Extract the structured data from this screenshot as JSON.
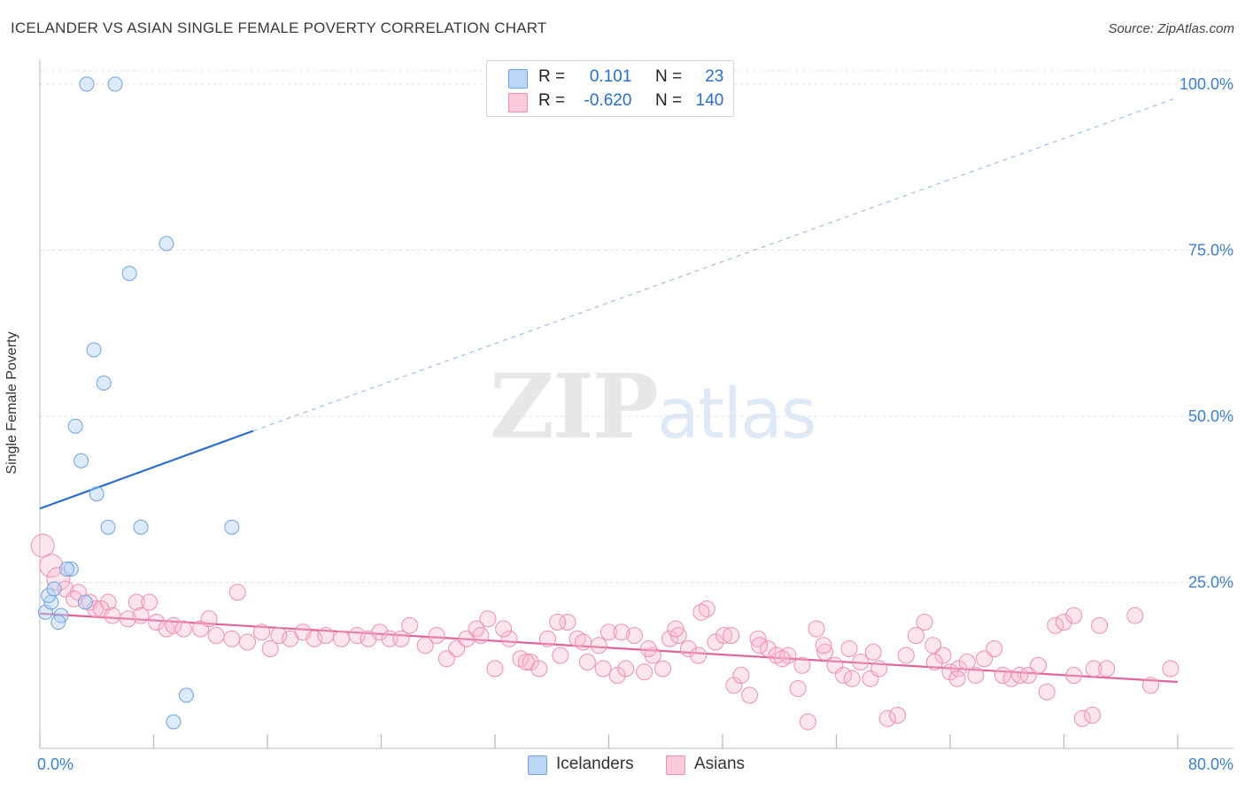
{
  "header": {
    "title": "ICELANDER VS ASIAN SINGLE FEMALE POVERTY CORRELATION CHART",
    "source": "Source: ZipAtlas.com"
  },
  "watermark": {
    "zip": "ZIP",
    "atlas": "atlas"
  },
  "legend": {
    "rows": [
      {
        "r_label": "R =",
        "r_value": "0.101",
        "n_label": "N =",
        "n_value": "23"
      },
      {
        "r_label": "R =",
        "r_value": "-0.620",
        "n_label": "N =",
        "n_value": "140"
      }
    ]
  },
  "bottom_legend": {
    "icelanders": "Icelanders",
    "asians": "Asians"
  },
  "chart_data": {
    "type": "scatter",
    "title": "ICELANDER VS ASIAN SINGLE FEMALE POVERTY CORRELATION CHART",
    "xlabel": "",
    "ylabel": "Single Female Poverty",
    "xlim": [
      0,
      80
    ],
    "ylim": [
      0,
      102
    ],
    "x_tick_labels": [
      "0.0%",
      "80.0%"
    ],
    "y_tick_labels": [
      "25.0%",
      "50.0%",
      "75.0%",
      "100.0%"
    ],
    "y_ticks": [
      25,
      50,
      75,
      100
    ],
    "colors": {
      "icelanders": "#6fa3e0",
      "asians": "#ef8fb0",
      "icelanders_line": "#2a6cc9",
      "asians_line": "#e0649a",
      "axis_label": "#3f7fd0"
    },
    "series": [
      {
        "name": "Icelanders",
        "trend": {
          "x0": 0,
          "y0": 36.1,
          "x1": 15,
          "y1": 47.8,
          "dashed_to_x": 80,
          "dashed_to_y": 98.0
        },
        "points": [
          [
            0.4,
            20.5
          ],
          [
            0.8,
            22
          ],
          [
            0.6,
            23
          ],
          [
            1.0,
            24
          ],
          [
            1.5,
            20
          ],
          [
            1.3,
            19
          ],
          [
            2.2,
            27
          ],
          [
            1.9,
            27
          ],
          [
            3.3,
            100
          ],
          [
            5.3,
            100
          ],
          [
            8.9,
            76
          ],
          [
            6.3,
            71.5
          ],
          [
            3.8,
            60
          ],
          [
            4.5,
            55
          ],
          [
            2.5,
            48.5
          ],
          [
            2.9,
            43.3
          ],
          [
            4.0,
            38.3
          ],
          [
            4.8,
            33.3
          ],
          [
            7.1,
            33.3
          ],
          [
            13.5,
            33.3
          ],
          [
            3.2,
            22
          ],
          [
            10.3,
            8
          ],
          [
            9.4,
            4
          ]
        ]
      },
      {
        "name": "Asians",
        "trend": {
          "x0": 0,
          "y0": 20.3,
          "x1": 80,
          "y1": 10.0
        },
        "points": [
          [
            0.2,
            30.5
          ],
          [
            0.8,
            27.5
          ],
          [
            1.3,
            25.5
          ],
          [
            1.8,
            24
          ],
          [
            2.7,
            23.5
          ],
          [
            2.4,
            22.5
          ],
          [
            3.5,
            22
          ],
          [
            4.8,
            22
          ],
          [
            6.8,
            22
          ],
          [
            7.7,
            22
          ],
          [
            13.9,
            23.5
          ],
          [
            3.9,
            21
          ],
          [
            4.3,
            21
          ],
          [
            5.1,
            20
          ],
          [
            6.2,
            19.5
          ],
          [
            7.1,
            20
          ],
          [
            8.2,
            19
          ],
          [
            8.9,
            18
          ],
          [
            9.4,
            18.5
          ],
          [
            10.1,
            18
          ],
          [
            11.3,
            18
          ],
          [
            11.9,
            19.5
          ],
          [
            12.4,
            17
          ],
          [
            13.5,
            16.5
          ],
          [
            14.6,
            16
          ],
          [
            15.6,
            17.5
          ],
          [
            16.2,
            15
          ],
          [
            16.8,
            17
          ],
          [
            17.6,
            16.5
          ],
          [
            18.5,
            17.5
          ],
          [
            19.3,
            16.5
          ],
          [
            20.1,
            17
          ],
          [
            21.2,
            16.5
          ],
          [
            22.3,
            17
          ],
          [
            23.1,
            16.5
          ],
          [
            23.9,
            17.5
          ],
          [
            24.6,
            16.5
          ],
          [
            25.4,
            16.5
          ],
          [
            26.0,
            18.5
          ],
          [
            27.1,
            15.5
          ],
          [
            27.9,
            17
          ],
          [
            28.6,
            13.5
          ],
          [
            29.3,
            15
          ],
          [
            30.0,
            16.5
          ],
          [
            30.7,
            18
          ],
          [
            31.5,
            19.5
          ],
          [
            32.0,
            12
          ],
          [
            33.0,
            16.5
          ],
          [
            33.8,
            13.5
          ],
          [
            34.5,
            13
          ],
          [
            35.1,
            12
          ],
          [
            35.7,
            16.5
          ],
          [
            36.6,
            14
          ],
          [
            37.1,
            19
          ],
          [
            37.8,
            16.5
          ],
          [
            38.5,
            13
          ],
          [
            39.3,
            15.5
          ],
          [
            40.0,
            17.5
          ],
          [
            40.6,
            11
          ],
          [
            41.2,
            12
          ],
          [
            41.8,
            17
          ],
          [
            42.5,
            11.5
          ],
          [
            43.1,
            14
          ],
          [
            43.8,
            12
          ],
          [
            44.3,
            16.5
          ],
          [
            44.9,
            17
          ],
          [
            45.6,
            15
          ],
          [
            46.3,
            14
          ],
          [
            46.9,
            21
          ],
          [
            47.5,
            16
          ],
          [
            48.1,
            17
          ],
          [
            48.8,
            9.5
          ],
          [
            49.3,
            11
          ],
          [
            49.9,
            8
          ],
          [
            50.5,
            16.5
          ],
          [
            51.2,
            15
          ],
          [
            51.8,
            14
          ],
          [
            52.6,
            14
          ],
          [
            53.3,
            9
          ],
          [
            54.0,
            4
          ],
          [
            54.6,
            18
          ],
          [
            55.2,
            14.5
          ],
          [
            55.9,
            12.5
          ],
          [
            56.5,
            11
          ],
          [
            57.1,
            10.5
          ],
          [
            57.7,
            13
          ],
          [
            58.4,
            10.5
          ],
          [
            59.0,
            12
          ],
          [
            59.6,
            4.5
          ],
          [
            60.3,
            5
          ],
          [
            60.9,
            14
          ],
          [
            61.6,
            17
          ],
          [
            62.2,
            19
          ],
          [
            62.8,
            15.5
          ],
          [
            63.5,
            14
          ],
          [
            64.0,
            11.5
          ],
          [
            64.6,
            12
          ],
          [
            65.2,
            13
          ],
          [
            65.8,
            11
          ],
          [
            66.4,
            13.5
          ],
          [
            67.1,
            15
          ],
          [
            67.7,
            11
          ],
          [
            68.3,
            10.5
          ],
          [
            68.9,
            11
          ],
          [
            69.5,
            11
          ],
          [
            70.2,
            12.5
          ],
          [
            70.8,
            8.5
          ],
          [
            71.4,
            18.5
          ],
          [
            72.0,
            19
          ],
          [
            72.7,
            20
          ],
          [
            73.3,
            4.5
          ],
          [
            74.0,
            5
          ],
          [
            74.5,
            18.5
          ],
          [
            74.1,
            12
          ],
          [
            72.7,
            11
          ],
          [
            75.0,
            12
          ],
          [
            77.0,
            20
          ],
          [
            78.1,
            9.5
          ],
          [
            79.5,
            12
          ],
          [
            64.5,
            10.5
          ],
          [
            62.9,
            13
          ],
          [
            58.6,
            14.5
          ],
          [
            56.9,
            15
          ],
          [
            55.1,
            15.5
          ],
          [
            53.6,
            12.5
          ],
          [
            52.2,
            13.5
          ],
          [
            50.6,
            15.5
          ],
          [
            48.6,
            17
          ],
          [
            46.5,
            20.5
          ],
          [
            44.7,
            18
          ],
          [
            42.8,
            15
          ],
          [
            40.9,
            17.5
          ],
          [
            39.6,
            12
          ],
          [
            38.2,
            16
          ],
          [
            36.4,
            19
          ],
          [
            34.2,
            13
          ],
          [
            32.6,
            18
          ],
          [
            31.0,
            17
          ]
        ]
      }
    ]
  }
}
